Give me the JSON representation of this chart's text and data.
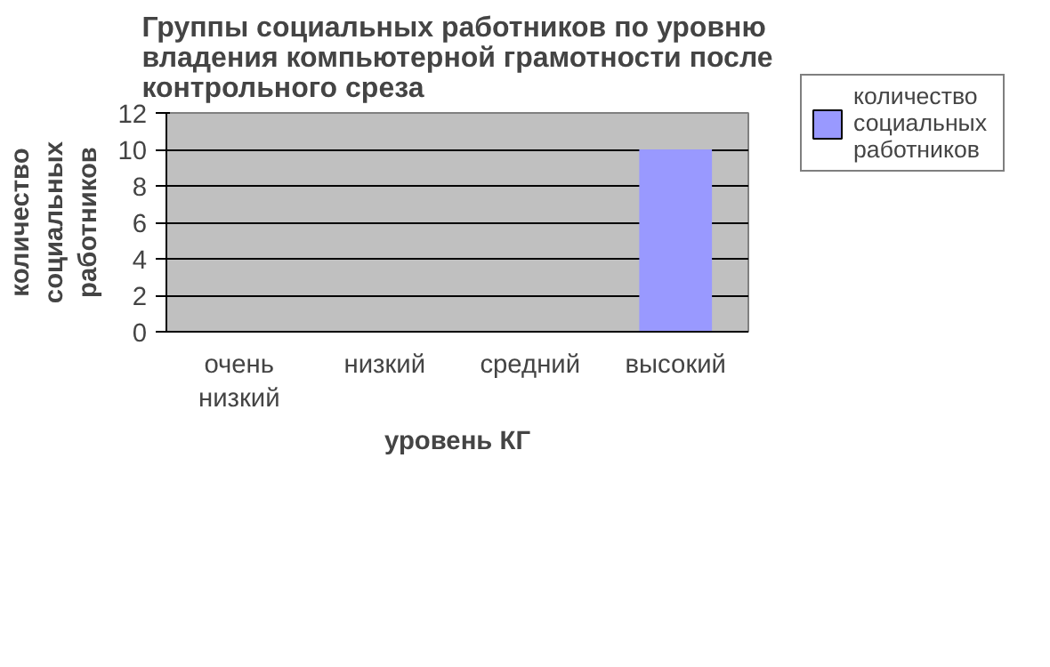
{
  "chart_data": {
    "type": "bar",
    "title": "Группы социальных работников по уровню владения компьютерной грамотности после контрольного среза",
    "xlabel": "уровень КГ",
    "ylabel": "количество социальных работников",
    "categories": [
      "очень низкий",
      "низкий",
      "средний",
      "высокий"
    ],
    "series": [
      {
        "name": "количество социальных работников",
        "color": "#9999ff",
        "values": [
          0,
          0,
          0,
          10
        ]
      }
    ],
    "ylim": [
      0,
      12
    ],
    "yticks": [
      0,
      2,
      4,
      6,
      8,
      10,
      12
    ],
    "grid": "y",
    "legend": "right"
  }
}
